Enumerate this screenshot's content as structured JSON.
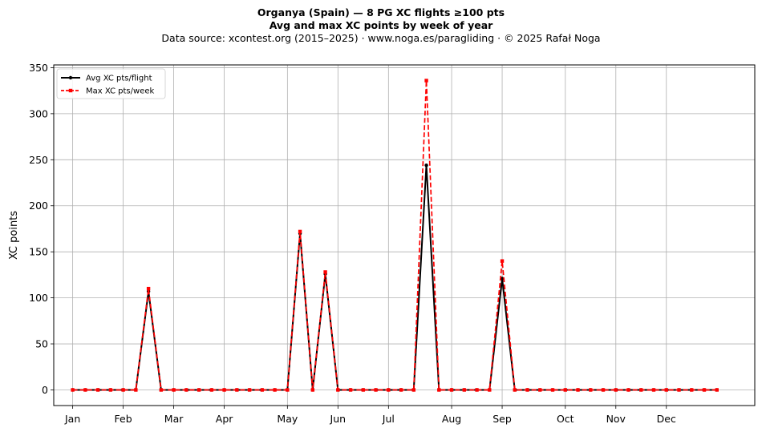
{
  "chart_data": {
    "type": "line",
    "title": "Organya (Spain)  —  8 PG XC flights ≥100 pts",
    "subtitle": "Avg and max XC points by week of year",
    "source": "Data source: xcontest.org (2015–2025)  ·  www.noga.es/paragliding  ·  © 2025 Rafał Noga",
    "xlabel": "",
    "ylabel": "XC points",
    "x": [
      1,
      2,
      3,
      4,
      5,
      6,
      7,
      8,
      9,
      10,
      11,
      12,
      13,
      14,
      15,
      16,
      17,
      18,
      19,
      20,
      21,
      22,
      23,
      24,
      25,
      26,
      27,
      28,
      29,
      30,
      31,
      32,
      33,
      34,
      35,
      36,
      37,
      38,
      39,
      40,
      41,
      42,
      43,
      44,
      45,
      46,
      47,
      48,
      49,
      50,
      51,
      52
    ],
    "xlim": [
      -0.5,
      55
    ],
    "ylim": [
      -17,
      353
    ],
    "yticks": [
      0,
      50,
      100,
      150,
      200,
      250,
      300,
      350
    ],
    "month_ticks": [
      {
        "label": "Jan",
        "week": 1
      },
      {
        "label": "Feb",
        "week": 5
      },
      {
        "label": "Mar",
        "week": 9
      },
      {
        "label": "Apr",
        "week": 13
      },
      {
        "label": "May",
        "week": 18
      },
      {
        "label": "Jun",
        "week": 22
      },
      {
        "label": "Jul",
        "week": 26
      },
      {
        "label": "Aug",
        "week": 31
      },
      {
        "label": "Sep",
        "week": 35
      },
      {
        "label": "Oct",
        "week": 40
      },
      {
        "label": "Nov",
        "week": 44
      },
      {
        "label": "Dec",
        "week": 48
      }
    ],
    "grid": true,
    "legend_position": "top-left",
    "series": [
      {
        "name": "Avg XC pts/flight",
        "color": "#000000",
        "style": "solid",
        "values": [
          0,
          0,
          0,
          0,
          0,
          0,
          107,
          0,
          0,
          0,
          0,
          0,
          0,
          0,
          0,
          0,
          0,
          0,
          170,
          0,
          126,
          0,
          0,
          0,
          0,
          0,
          0,
          0,
          244,
          0,
          0,
          0,
          0,
          0,
          121,
          0,
          0,
          0,
          0,
          0,
          0,
          0,
          0,
          0,
          0,
          0,
          0,
          0,
          0,
          0,
          0,
          0
        ]
      },
      {
        "name": "Max XC pts/week",
        "color": "#ff0000",
        "style": "dashed",
        "values": [
          0,
          0,
          0,
          0,
          0,
          0,
          110,
          0,
          0,
          0,
          0,
          0,
          0,
          0,
          0,
          0,
          0,
          0,
          172,
          0,
          128,
          0,
          0,
          0,
          0,
          0,
          0,
          0,
          336,
          0,
          0,
          0,
          0,
          0,
          140,
          0,
          0,
          0,
          0,
          0,
          0,
          0,
          0,
          0,
          0,
          0,
          0,
          0,
          0,
          0,
          0,
          0
        ]
      }
    ]
  }
}
